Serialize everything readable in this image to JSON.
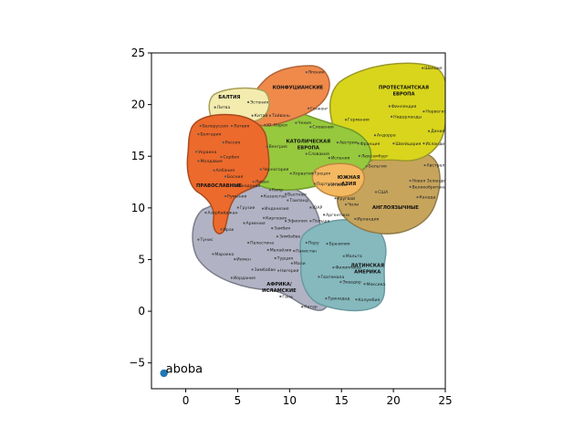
{
  "chart_data": {
    "type": "scatter",
    "title": "",
    "xlabel": "",
    "ylabel": "",
    "xlim": [
      -3.3,
      25
    ],
    "ylim": [
      -7.5,
      25
    ],
    "xticks": [
      0,
      5,
      10,
      15,
      20,
      25
    ],
    "yticks": [
      -5,
      0,
      5,
      10,
      15,
      20,
      25
    ],
    "grid": false,
    "legend": "none",
    "point_color": "#1f77b4",
    "points": [
      {
        "x": -2.1,
        "y": -6.0,
        "label": "aboba"
      }
    ],
    "background_image": {
      "extent_x": [
        0,
        25
      ],
      "extent_y": [
        0,
        25
      ],
      "regions": [
        {
          "id": "baltia",
          "title": "БАЛТИЯ",
          "color": "#f3ecae"
        },
        {
          "id": "confucian",
          "title": "КОНФУЦИАНСКИЕ",
          "color": "#f08a4b"
        },
        {
          "id": "protestant",
          "title": "ПРОТЕСТАНТСКАЯ ЕВРОПА",
          "color": "#d9d51c"
        },
        {
          "id": "catholic",
          "title": "КАТОЛИЧЕСКАЯ ЕВРОПА",
          "color": "#96c93d"
        },
        {
          "id": "orthodox",
          "title": "ПРАВОСЛАВНЫЕ",
          "color": "#ec6a2c"
        },
        {
          "id": "south_asia",
          "title": "ЮЖНАЯ АЗИЯ",
          "color": "#f4b860"
        },
        {
          "id": "anglo",
          "title": "АНГЛОЯЗЫЧНЫЕ",
          "color": "#c6a45c"
        },
        {
          "id": "africa",
          "title": "АФРИКА/ ИСЛАМСКИЕ",
          "color": "#b1b3c4"
        },
        {
          "id": "latam",
          "title": "ЛАТИНСКАЯ АМЕРИКА",
          "color": "#85b9be"
        }
      ],
      "labels": [
        {
          "text": "Япония",
          "x": 11.8,
          "y": 23.0
        },
        {
          "text": "Литва",
          "x": 3.0,
          "y": 19.6
        },
        {
          "text": "Эстония",
          "x": 6.2,
          "y": 20.1
        },
        {
          "text": "Китай",
          "x": 6.6,
          "y": 18.8
        },
        {
          "text": "Тайвань",
          "x": 8.3,
          "y": 18.8
        },
        {
          "text": "Латвия",
          "x": 4.6,
          "y": 17.8
        },
        {
          "text": "Ю. Корея",
          "x": 7.8,
          "y": 17.9
        },
        {
          "text": "Гонконг",
          "x": 12.0,
          "y": 19.5
        },
        {
          "text": "Чехия",
          "x": 10.8,
          "y": 18.1
        },
        {
          "text": "Словения",
          "x": 12.2,
          "y": 17.7
        },
        {
          "text": "Германия",
          "x": 15.6,
          "y": 18.4
        },
        {
          "text": "Финляндия",
          "x": 19.8,
          "y": 19.7
        },
        {
          "text": "Нидерланды",
          "x": 20.0,
          "y": 18.7
        },
        {
          "text": "Швеция",
          "x": 23.0,
          "y": 23.4
        },
        {
          "text": "Норвегия",
          "x": 23.1,
          "y": 19.2
        },
        {
          "text": "Дания",
          "x": 23.6,
          "y": 17.3
        },
        {
          "text": "Исландия",
          "x": 23.1,
          "y": 16.1
        },
        {
          "text": "Белоруссия",
          "x": 1.6,
          "y": 17.8
        },
        {
          "text": "Болгария",
          "x": 1.4,
          "y": 17.0
        },
        {
          "text": "Россия",
          "x": 3.8,
          "y": 16.2
        },
        {
          "text": "Венгрия",
          "x": 8.0,
          "y": 15.8
        },
        {
          "text": "Украина",
          "x": 1.2,
          "y": 15.3
        },
        {
          "text": "Сербия",
          "x": 3.6,
          "y": 14.8
        },
        {
          "text": "Молдавия",
          "x": 1.4,
          "y": 14.4
        },
        {
          "text": "Албания",
          "x": 2.9,
          "y": 13.5
        },
        {
          "text": "Черногория",
          "x": 7.4,
          "y": 13.6
        },
        {
          "text": "Босния",
          "x": 4.0,
          "y": 12.9
        },
        {
          "text": "Македония",
          "x": 4.8,
          "y": 12.0
        },
        {
          "text": "Хорватия",
          "x": 10.3,
          "y": 13.2
        },
        {
          "text": "Греция",
          "x": 12.4,
          "y": 13.2
        },
        {
          "text": "Австрия",
          "x": 14.8,
          "y": 16.2
        },
        {
          "text": "Франция",
          "x": 16.8,
          "y": 16.1
        },
        {
          "text": "Андорра",
          "x": 18.4,
          "y": 16.9
        },
        {
          "text": "Швейцария",
          "x": 20.2,
          "y": 16.1
        },
        {
          "text": "Люксембург",
          "x": 16.9,
          "y": 14.9
        },
        {
          "text": "Словакия",
          "x": 11.8,
          "y": 15.1
        },
        {
          "text": "Испания",
          "x": 14.0,
          "y": 14.7
        },
        {
          "text": "Бельгия",
          "x": 17.6,
          "y": 13.9
        },
        {
          "text": "Австралия",
          "x": 23.2,
          "y": 14.0
        },
        {
          "text": "Новая Зеландия",
          "x": 21.8,
          "y": 12.5
        },
        {
          "text": "Великобритания",
          "x": 21.8,
          "y": 11.9
        },
        {
          "text": "Канада",
          "x": 22.5,
          "y": 10.9
        },
        {
          "text": "США",
          "x": 18.5,
          "y": 11.4
        },
        {
          "text": "Кипр",
          "x": 8.3,
          "y": 11.6
        },
        {
          "text": "Португалия",
          "x": 12.6,
          "y": 12.2
        },
        {
          "text": "Италия",
          "x": 14.0,
          "y": 12.1
        },
        {
          "text": "Уругвай",
          "x": 14.6,
          "y": 10.8
        },
        {
          "text": "Чили",
          "x": 15.6,
          "y": 10.2
        },
        {
          "text": "Казахстан",
          "x": 7.5,
          "y": 11.0
        },
        {
          "text": "Вьетнам",
          "x": 9.8,
          "y": 11.2
        },
        {
          "text": "Таиланд",
          "x": 10.0,
          "y": 10.6
        },
        {
          "text": "Румыния",
          "x": 4.0,
          "y": 11.0
        },
        {
          "text": "Грузия",
          "x": 5.2,
          "y": 9.9
        },
        {
          "text": "Ливан",
          "x": 6.7,
          "y": 12.4
        },
        {
          "text": "Индонезия",
          "x": 7.6,
          "y": 9.8
        },
        {
          "text": "Киргизия",
          "x": 7.7,
          "y": 8.9
        },
        {
          "text": "Эфиопия",
          "x": 9.8,
          "y": 8.6
        },
        {
          "text": "ЮАР",
          "x": 12.2,
          "y": 9.9
        },
        {
          "text": "Аргентина",
          "x": 13.5,
          "y": 9.2
        },
        {
          "text": "Ирландия",
          "x": 16.5,
          "y": 8.8
        },
        {
          "text": "Польша",
          "x": 12.2,
          "y": 8.6
        },
        {
          "text": "Азербайджан",
          "x": 2.1,
          "y": 9.4
        },
        {
          "text": "Армения",
          "x": 5.8,
          "y": 8.4
        },
        {
          "text": "Замбия",
          "x": 8.5,
          "y": 7.9
        },
        {
          "text": "Ирак",
          "x": 3.6,
          "y": 7.8
        },
        {
          "text": "Зимбабве",
          "x": 9.0,
          "y": 7.1
        },
        {
          "text": "Тунис",
          "x": 1.4,
          "y": 6.8
        },
        {
          "text": "Палестина",
          "x": 6.2,
          "y": 6.5
        },
        {
          "text": "Перу",
          "x": 11.8,
          "y": 6.5
        },
        {
          "text": "Бразилия",
          "x": 13.8,
          "y": 6.4
        },
        {
          "text": "Малайзия",
          "x": 8.1,
          "y": 5.8
        },
        {
          "text": "Пакистан",
          "x": 10.6,
          "y": 5.7
        },
        {
          "text": "Марокко",
          "x": 2.8,
          "y": 5.4
        },
        {
          "text": "Иемен",
          "x": 4.9,
          "y": 4.9
        },
        {
          "text": "Турция",
          "x": 8.8,
          "y": 5.0
        },
        {
          "text": "Мали",
          "x": 10.4,
          "y": 4.5
        },
        {
          "text": "Мальта",
          "x": 15.4,
          "y": 5.2
        },
        {
          "text": "Филиппины",
          "x": 14.4,
          "y": 4.1
        },
        {
          "text": "Зимбабве",
          "x": 6.6,
          "y": 3.9
        },
        {
          "text": "Нигерия",
          "x": 9.1,
          "y": 3.8
        },
        {
          "text": "Гватемала",
          "x": 13.0,
          "y": 3.2
        },
        {
          "text": "Эквадор",
          "x": 15.1,
          "y": 2.7
        },
        {
          "text": "Мексика",
          "x": 17.4,
          "y": 2.5
        },
        {
          "text": "Иордания",
          "x": 4.6,
          "y": 3.1
        },
        {
          "text": "Гана",
          "x": 9.3,
          "y": 1.3
        },
        {
          "text": "Тринидад",
          "x": 13.7,
          "y": 1.1
        },
        {
          "text": "Колумбия",
          "x": 16.6,
          "y": 1.0
        },
        {
          "text": "Катар",
          "x": 11.4,
          "y": 0.3
        }
      ]
    }
  }
}
